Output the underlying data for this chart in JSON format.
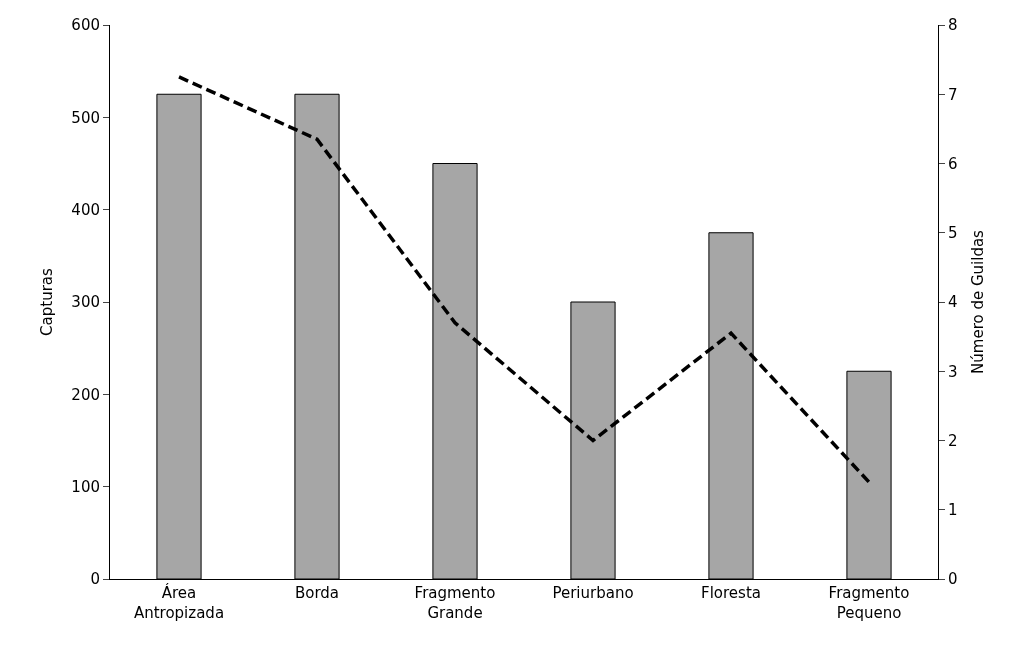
{
  "chart_data": {
    "type": "bar",
    "ylabel": "Capturas",
    "y2label": "Número de Guildas",
    "categories": [
      "Área\nAntropizada",
      "Borda",
      "Fragmento\nGrande",
      "Periurbano",
      "Floresta",
      "Fragmento\nPequeno"
    ],
    "series": [
      {
        "color": "#a6a6a6",
        "values": [
          525,
          525,
          450,
          300,
          375,
          225
        ]
      },
      {
        "type": "line",
        "axis": "y2",
        "color": "#000000",
        "line_style": "dashed",
        "values": [
          7.25,
          6.35,
          3.7,
          2,
          3.55,
          1.4
        ]
      }
    ],
    "ylim": [
      0,
      600
    ],
    "yticks": [
      0,
      100,
      200,
      300,
      400,
      500,
      600
    ],
    "y2lim": [
      0,
      8
    ],
    "y2ticks": [
      0,
      1,
      2,
      3,
      4,
      5,
      6,
      7,
      8
    ]
  }
}
